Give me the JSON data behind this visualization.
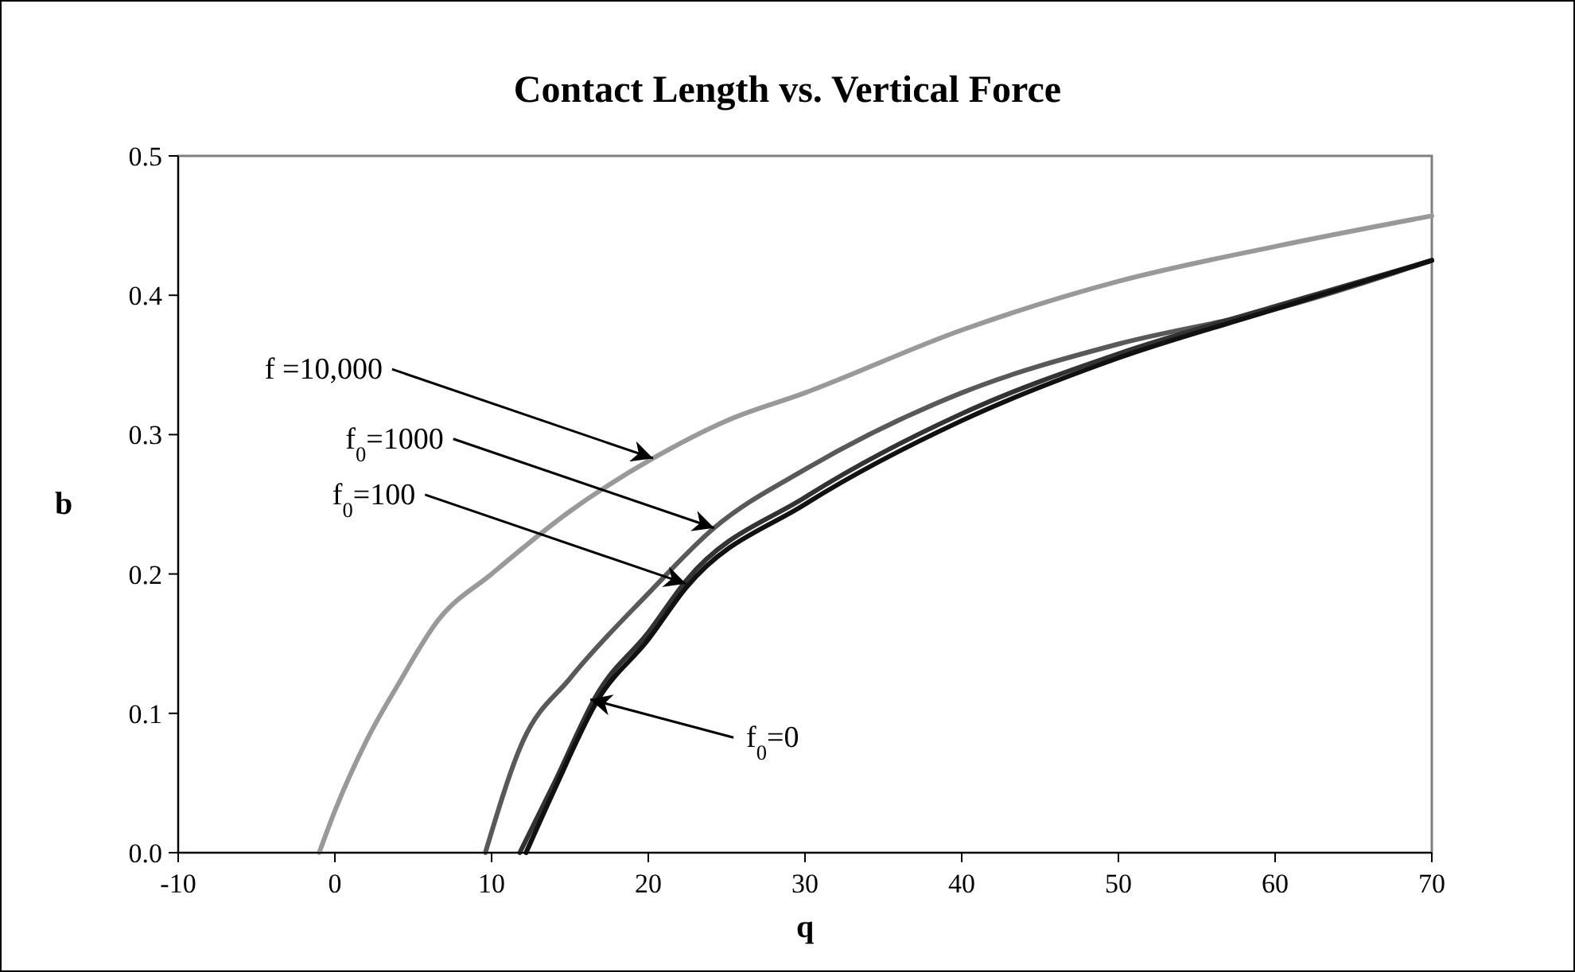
{
  "chart_data": {
    "type": "line",
    "title": "Contact Length vs. Vertical Force",
    "xlabel": "q",
    "ylabel": "b",
    "xlim": [
      -10,
      70
    ],
    "xticks": [
      -10,
      0,
      10,
      20,
      30,
      40,
      50,
      60,
      70
    ],
    "ylim": [
      0,
      0.5
    ],
    "yticks": [
      {
        "value": 0,
        "label": "0.0"
      },
      0.1,
      0.2,
      0.3,
      0.4,
      0.5
    ],
    "grid": false,
    "marker": "none",
    "line_style": "solid",
    "series": [
      {
        "color": "#999999",
        "x": [
          -1,
          0,
          2,
          4,
          6.6,
          10,
          15,
          20.3,
          25,
          30,
          40,
          50,
          60,
          70
        ],
        "values": [
          0,
          0.03,
          0.08,
          0.12,
          0.167,
          0.2,
          0.245,
          0.283,
          0.31,
          0.33,
          0.375,
          0.41,
          0.435,
          0.457
        ]
      },
      {
        "color": "#595959",
        "x": [
          9.6,
          12,
          15,
          20,
          24.2,
          30,
          40,
          50,
          60,
          70
        ],
        "values": [
          0,
          0.08,
          0.125,
          0.186,
          0.233,
          0.275,
          0.33,
          0.365,
          0.39,
          0.425
        ]
      },
      {
        "color": "#333333",
        "x": [
          11.8,
          14,
          16.8,
          20,
          22.4,
          30,
          40,
          50,
          60,
          70
        ],
        "values": [
          0,
          0.05,
          0.115,
          0.158,
          0.195,
          0.255,
          0.315,
          0.358,
          0.392,
          0.425
        ]
      },
      {
        "color": "#111111",
        "x": [
          12.2,
          14,
          16.8,
          20,
          22.4,
          30,
          40,
          50,
          60,
          70
        ],
        "values": [
          0,
          0.045,
          0.11,
          0.153,
          0.19,
          0.25,
          0.31,
          0.355,
          0.39,
          0.425
        ]
      }
    ],
    "annotations": [
      {
        "text": "f =10,000",
        "x": 20.3,
        "y": 0.283
      },
      {
        "text": "f$_{0}$=1000",
        "x": 24.2,
        "y": 0.233
      },
      {
        "text": "f$_{0}$=100",
        "x": 22.4,
        "y": 0.193
      },
      {
        "text": "f$_{0}$=0",
        "x": 16.3,
        "y": 0.11
      }
    ]
  }
}
